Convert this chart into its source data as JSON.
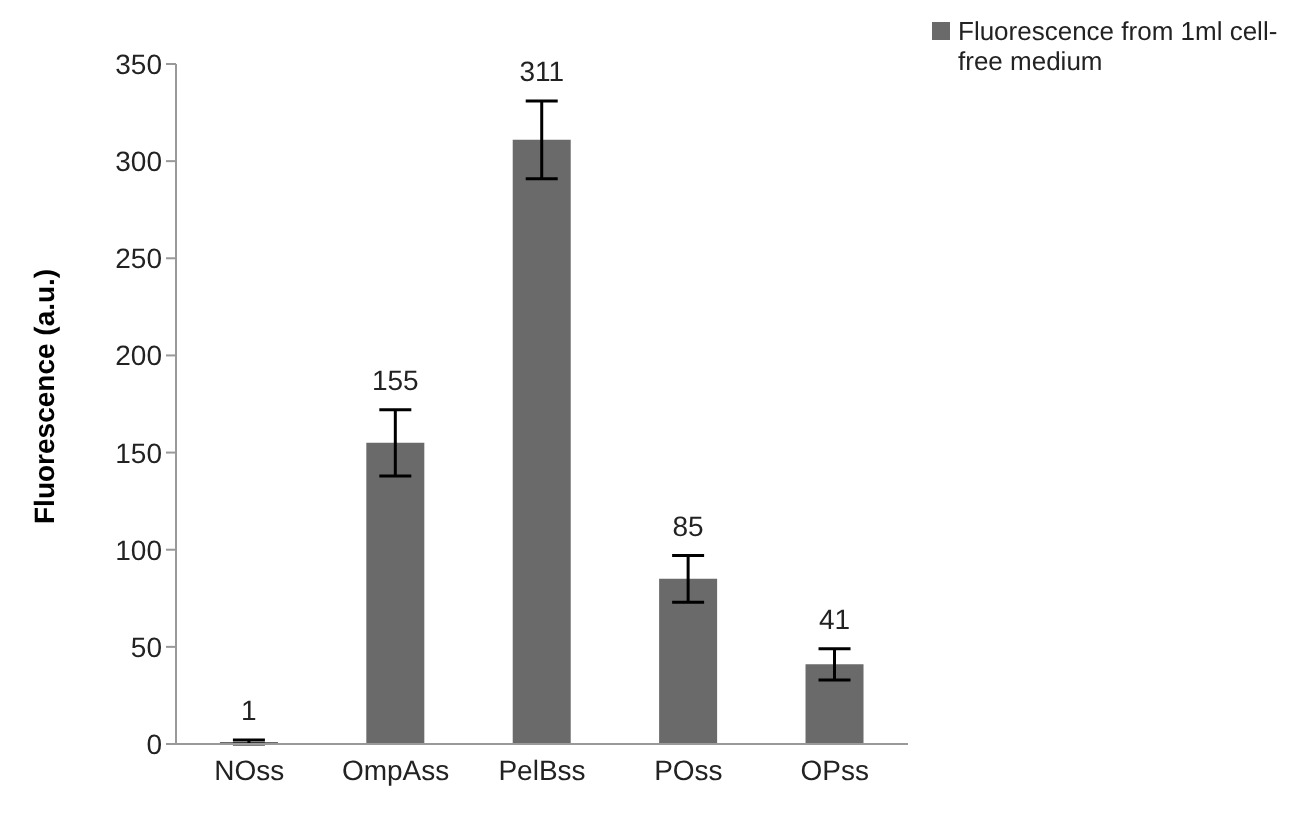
{
  "chart_data": {
    "type": "bar",
    "ylabel": "Fluorescence (a.u.)",
    "categories": [
      "NOss",
      "OmpAss",
      "PelBss",
      "POss",
      "OPss"
    ],
    "series": [
      {
        "name": "Fluorescence from 1ml cell-free medium",
        "color": "#6a6a6a",
        "values": [
          1,
          155,
          311,
          85,
          41
        ],
        "errors": [
          1,
          17,
          20,
          12,
          8
        ]
      }
    ],
    "data_labels": true,
    "ylim": [
      0,
      350
    ],
    "yticks": [
      0,
      50,
      100,
      150,
      200,
      250,
      300,
      350
    ],
    "grid": false,
    "legend": "top right"
  }
}
